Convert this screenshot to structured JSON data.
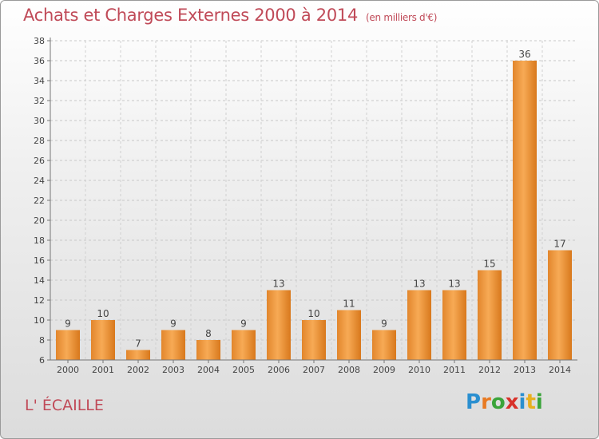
{
  "title": "Achats et Charges Externes 2000 à 2014",
  "unit_note": "(en milliers d'€)",
  "commune": "L' ÉCAILLE",
  "logo": {
    "letters": [
      "P",
      "r",
      "o",
      "x",
      "i",
      "t",
      "i"
    ],
    "colors": [
      "#2a8fd0",
      "#e87a22",
      "#3aa43a",
      "#d8322a",
      "#2a8fd0",
      "#e8b020",
      "#3aa43a"
    ]
  },
  "chart_data": {
    "type": "bar",
    "title": "Achats et Charges Externes 2000 à 2014",
    "subtitle": "(en milliers d'€)",
    "categories": [
      "2000",
      "2001",
      "2002",
      "2003",
      "2004",
      "2005",
      "2006",
      "2007",
      "2008",
      "2009",
      "2010",
      "2011",
      "2012",
      "2013",
      "2014"
    ],
    "values": [
      9,
      10,
      7,
      9,
      8,
      9,
      13,
      10,
      11,
      9,
      13,
      13,
      15,
      36,
      17
    ],
    "ylim": [
      6,
      38
    ],
    "yticks": [
      6,
      8,
      10,
      12,
      14,
      16,
      18,
      20,
      22,
      24,
      26,
      28,
      30,
      32,
      34,
      36,
      38
    ],
    "bar_color_light": "#f5a550",
    "bar_color_dark": "#d4741a",
    "grid": true
  }
}
